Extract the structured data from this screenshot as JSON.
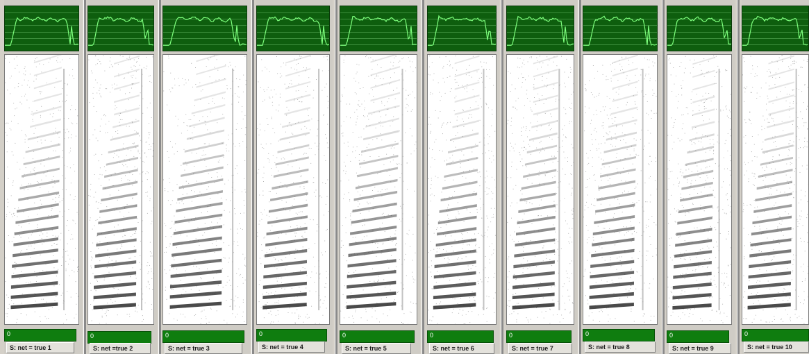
{
  "panels": [
    {
      "label": "S: net = true 1",
      "status": "0"
    },
    {
      "label": "S: net =true 2",
      "status": "0"
    },
    {
      "label": "S: net = true 3",
      "status": "0"
    },
    {
      "label": "S: net = true 4",
      "status": "0"
    },
    {
      "label": "S: net = true 5",
      "status": "0"
    },
    {
      "label": "S: net = true 6",
      "status": "0"
    },
    {
      "label": "S: net = true 7",
      "status": "0"
    },
    {
      "label": "S: net = true 8",
      "status": "0"
    },
    {
      "label": "S: net = true 9",
      "status": "0"
    },
    {
      "label": "S: net = true 10",
      "status": "0"
    }
  ],
  "colors": {
    "energy_bg": "#0e5e0e",
    "energy_line": "#7dff7d",
    "status_bar": "#0f7d0f",
    "spectrogram_ink": "#2a2a2a"
  }
}
